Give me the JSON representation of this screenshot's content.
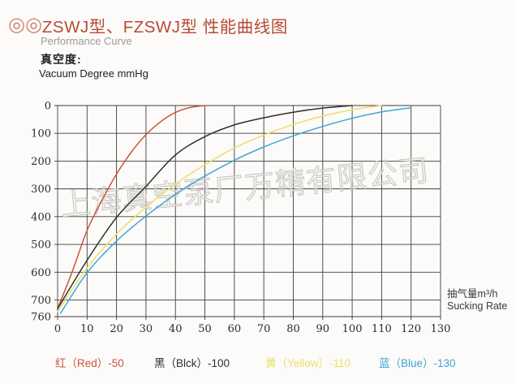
{
  "header": {
    "bullet": "◎",
    "title": "ZSWJ型、FZSWJ型  性能曲线图",
    "subtitle": "Performance Curve"
  },
  "y_axis": {
    "title_zh": "真空度:",
    "title_en": "Vacuum Degree mmHg",
    "ticks": [
      0,
      100,
      200,
      300,
      400,
      500,
      600,
      700,
      760
    ]
  },
  "x_axis": {
    "label_zh": "抽气量m³/h",
    "label_en": "Sucking Rate",
    "ticks": [
      0,
      10,
      20,
      30,
      40,
      50,
      60,
      70,
      80,
      90,
      100,
      110,
      120,
      130
    ]
  },
  "watermark": "上海真空泵厂万精有限公司",
  "legend": [
    {
      "label": "红（Red）-50",
      "color": "#c8563c"
    },
    {
      "label": "黑（Blck）-100",
      "color": "#2f2f2f"
    },
    {
      "label": "黄（Yellow）-110",
      "color": "#ecdf66"
    },
    {
      "label": "蓝（Blue）-130",
      "color": "#3ea6d6"
    }
  ],
  "chart_data": {
    "type": "line",
    "title": "ZSWJ型、FZSWJ型 性能曲线图 / Performance Curve",
    "xlabel": "抽气量m³/h Sucking Rate",
    "ylabel": "真空度 Vacuum Degree mmHg",
    "xlim": [
      0,
      130
    ],
    "ylim": [
      0,
      760
    ],
    "y_axis_inverted": true,
    "grid": true,
    "legend_position": "bottom",
    "series": [
      {
        "name": "红（Red）-50",
        "color": "#c8563c",
        "points": [
          [
            0,
            732
          ],
          [
            5,
            597
          ],
          [
            10,
            450
          ],
          [
            15,
            342
          ],
          [
            20,
            247
          ],
          [
            25,
            168
          ],
          [
            30,
            105
          ],
          [
            35,
            58
          ],
          [
            40,
            25
          ],
          [
            45,
            7
          ],
          [
            50,
            0
          ]
        ]
      },
      {
        "name": "黑（Blck）-100",
        "color": "#2f2f2f",
        "points": [
          [
            0,
            732
          ],
          [
            10,
            557
          ],
          [
            20,
            403
          ],
          [
            30,
            291
          ],
          [
            40,
            178
          ],
          [
            50,
            112
          ],
          [
            60,
            70
          ],
          [
            70,
            44
          ],
          [
            80,
            24
          ],
          [
            90,
            9
          ],
          [
            100,
            0
          ]
        ]
      },
      {
        "name": "黄（Yellow）-110",
        "color": "#ecdf66",
        "points": [
          [
            0,
            742
          ],
          [
            10,
            585
          ],
          [
            20,
            463
          ],
          [
            30,
            366
          ],
          [
            40,
            283
          ],
          [
            50,
            213
          ],
          [
            60,
            153
          ],
          [
            70,
            106
          ],
          [
            80,
            68
          ],
          [
            90,
            38
          ],
          [
            100,
            15
          ],
          [
            110,
            0
          ]
        ]
      },
      {
        "name": "蓝（Blue）-130",
        "color": "#3ea6d6",
        "points": [
          [
            1,
            748
          ],
          [
            10,
            602
          ],
          [
            20,
            488
          ],
          [
            30,
            398
          ],
          [
            40,
            320
          ],
          [
            50,
            254
          ],
          [
            60,
            197
          ],
          [
            70,
            149
          ],
          [
            80,
            109
          ],
          [
            90,
            75
          ],
          [
            100,
            46
          ],
          [
            110,
            23
          ],
          [
            120,
            8
          ]
        ]
      }
    ]
  }
}
